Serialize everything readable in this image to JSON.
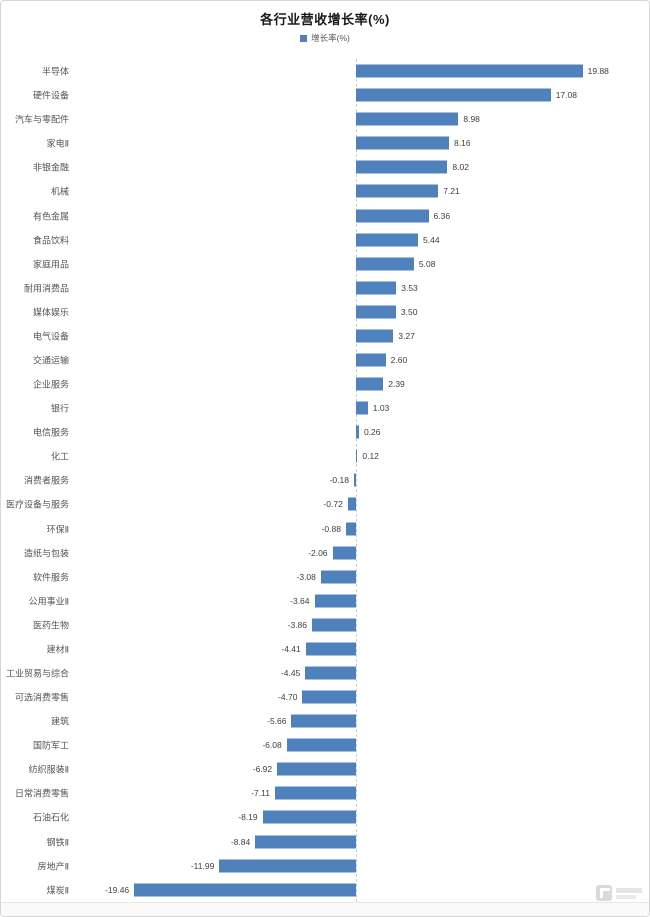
{
  "title": "各行业营收增长率(%)",
  "legend": {
    "label": "增长率(%)",
    "marker_color": "#4f81bd"
  },
  "chart_data": {
    "type": "bar",
    "orientation": "horizontal",
    "title": "各行业营收增长率(%)",
    "series_name": "增长率(%)",
    "bar_color": "#4f81bd",
    "value_label_decimals": 2,
    "xlim": [
      -26,
      26
    ],
    "grid": false,
    "legend_position": "top-center",
    "categories": [
      "半导体",
      "硬件设备",
      "汽车与零配件",
      "家电Ⅱ",
      "非银金融",
      "机械",
      "有色金属",
      "食品饮料",
      "家庭用品",
      "耐用消费品",
      "媒体娱乐",
      "电气设备",
      "交通运输",
      "企业服务",
      "银行",
      "电信服务",
      "化工",
      "消费者服务",
      "医疗设备与服务",
      "环保Ⅱ",
      "造纸与包装",
      "软件服务",
      "公用事业Ⅱ",
      "医药生物",
      "建材Ⅱ",
      "工业贸易与综合",
      "可选消费零售",
      "建筑",
      "国防军工",
      "纺织服装Ⅱ",
      "日常消费零售",
      "石油石化",
      "钢铁Ⅱ",
      "房地产Ⅱ",
      "煤炭Ⅱ"
    ],
    "values": [
      19.88,
      17.08,
      8.98,
      8.16,
      8.02,
      7.21,
      6.36,
      5.44,
      5.08,
      3.53,
      3.5,
      3.27,
      2.6,
      2.39,
      1.03,
      0.26,
      0.12,
      -0.18,
      -0.72,
      -0.88,
      -2.06,
      -3.08,
      -3.64,
      -3.86,
      -4.41,
      -4.45,
      -4.7,
      -5.66,
      -6.08,
      -6.92,
      -7.11,
      -8.19,
      -8.84,
      -11.99,
      -19.46
    ]
  }
}
